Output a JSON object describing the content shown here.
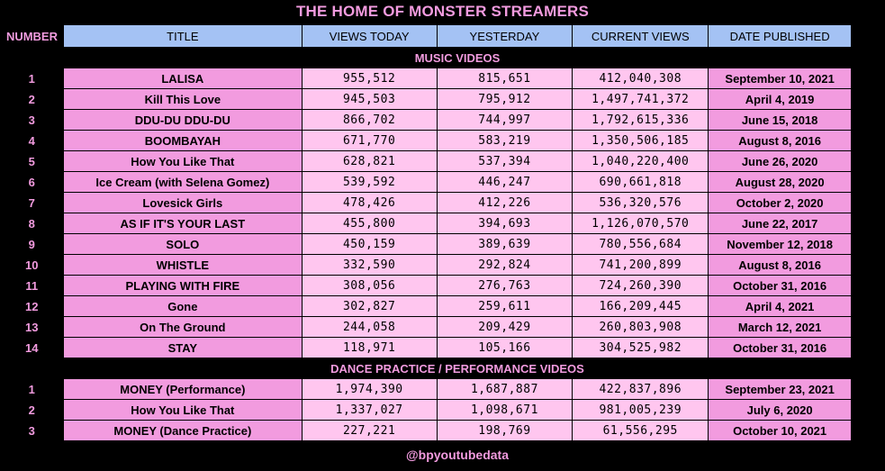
{
  "header": {
    "title": "THE HOME OF MONSTER STREAMERS"
  },
  "columns": {
    "number": "NUMBER",
    "title": "TITLE",
    "views_today": "VIEWS TODAY",
    "yesterday": "YESTERDAY",
    "current_views": "CURRENT VIEWS",
    "date_published": "DATE PUBLISHED"
  },
  "sections": [
    {
      "label": "MUSIC VIDEOS",
      "rows": [
        {
          "number": "1",
          "title": "LALISA",
          "views_today": "955,512",
          "yesterday": "815,651",
          "current_views": "412,040,308",
          "date": "September 10, 2021"
        },
        {
          "number": "2",
          "title": "Kill This Love",
          "views_today": "945,503",
          "yesterday": "795,912",
          "current_views": "1,497,741,372",
          "date": "April 4, 2019"
        },
        {
          "number": "3",
          "title": "DDU-DU DDU-DU",
          "views_today": "866,702",
          "yesterday": "744,997",
          "current_views": "1,792,615,336",
          "date": "June 15, 2018"
        },
        {
          "number": "4",
          "title": "BOOMBAYAH",
          "views_today": "671,770",
          "yesterday": "583,219",
          "current_views": "1,350,506,185",
          "date": "August 8, 2016"
        },
        {
          "number": "5",
          "title": "How You Like That",
          "views_today": "628,821",
          "yesterday": "537,394",
          "current_views": "1,040,220,400",
          "date": "June 26, 2020"
        },
        {
          "number": "6",
          "title": "Ice Cream (with Selena Gomez)",
          "views_today": "539,592",
          "yesterday": "446,247",
          "current_views": "690,661,818",
          "date": "August 28, 2020"
        },
        {
          "number": "7",
          "title": "Lovesick Girls",
          "views_today": "478,426",
          "yesterday": "412,226",
          "current_views": "536,320,576",
          "date": "October 2, 2020"
        },
        {
          "number": "8",
          "title": "AS IF IT'S YOUR LAST",
          "views_today": "455,800",
          "yesterday": "394,693",
          "current_views": "1,126,070,570",
          "date": "June 22, 2017"
        },
        {
          "number": "9",
          "title": "SOLO",
          "views_today": "450,159",
          "yesterday": "389,639",
          "current_views": "780,556,684",
          "date": "November 12, 2018"
        },
        {
          "number": "10",
          "title": "WHISTLE",
          "views_today": "332,590",
          "yesterday": "292,824",
          "current_views": "741,200,899",
          "date": "August 8, 2016"
        },
        {
          "number": "11",
          "title": "PLAYING WITH FIRE",
          "views_today": "308,056",
          "yesterday": "276,763",
          "current_views": "724,260,390",
          "date": "October 31, 2016"
        },
        {
          "number": "12",
          "title": "Gone",
          "views_today": "302,827",
          "yesterday": "259,611",
          "current_views": "166,209,445",
          "date": "April 4, 2021"
        },
        {
          "number": "13",
          "title": "On The Ground",
          "views_today": "244,058",
          "yesterday": "209,429",
          "current_views": "260,803,908",
          "date": "March 12, 2021"
        },
        {
          "number": "14",
          "title": "STAY",
          "views_today": "118,971",
          "yesterday": "105,166",
          "current_views": "304,525,982",
          "date": "October 31, 2016"
        }
      ]
    },
    {
      "label": "DANCE PRACTICE / PERFORMANCE VIDEOS",
      "rows": [
        {
          "number": "1",
          "title": "MONEY (Performance)",
          "views_today": "1,974,390",
          "yesterday": "1,687,887",
          "current_views": "422,837,896",
          "date": "September 23, 2021"
        },
        {
          "number": "2",
          "title": "How You Like That",
          "views_today": "1,337,027",
          "yesterday": "1,098,671",
          "current_views": "981,005,239",
          "date": "July 6, 2020"
        },
        {
          "number": "3",
          "title": "MONEY (Dance Practice)",
          "views_today": "227,221",
          "yesterday": "198,769",
          "current_views": "61,556,295",
          "date": "October 10, 2021"
        }
      ]
    }
  ],
  "footer": {
    "credit": "@bpyoutubedata"
  },
  "colors": {
    "background": "#000000",
    "header_blue": "#a4c2f4",
    "pink": "#f29bdf",
    "light_pink": "#ffc6ef"
  }
}
